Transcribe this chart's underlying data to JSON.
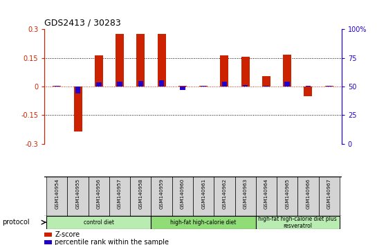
{
  "title": "GDS2413 / 30283",
  "samples": [
    "GSM140954",
    "GSM140955",
    "GSM140956",
    "GSM140957",
    "GSM140958",
    "GSM140959",
    "GSM140960",
    "GSM140961",
    "GSM140962",
    "GSM140963",
    "GSM140964",
    "GSM140965",
    "GSM140966",
    "GSM140967"
  ],
  "zscore": [
    0.003,
    -0.235,
    0.162,
    0.278,
    0.278,
    0.278,
    0.003,
    0.003,
    0.162,
    0.155,
    0.055,
    0.168,
    -0.05,
    0.003
  ],
  "pct_rank": [
    50.5,
    44.0,
    53.5,
    54.0,
    55.0,
    55.5,
    47.0,
    50.5,
    54.0,
    51.5,
    50.5,
    54.0,
    50.5,
    50.5
  ],
  "groups": [
    {
      "label": "control diet",
      "start": 0,
      "end": 4,
      "color": "#b8ecb0"
    },
    {
      "label": "high-fat high-calorie diet",
      "start": 5,
      "end": 9,
      "color": "#90dd78"
    },
    {
      "label": "high-fat high-calorie diet plus\nresveratrol",
      "start": 10,
      "end": 13,
      "color": "#b8ecb0"
    }
  ],
  "ylim_left": [
    -0.3,
    0.3
  ],
  "ylim_right": [
    0,
    100
  ],
  "yticks_left": [
    -0.3,
    -0.15,
    0.0,
    0.15,
    0.3
  ],
  "ytick_labels_left": [
    "-0.3",
    "-0.15",
    "0",
    "0.15",
    "0.3"
  ],
  "yticks_right": [
    0,
    25,
    50,
    75,
    100
  ],
  "ytick_labels_right": [
    "0",
    "25",
    "50",
    "75",
    "100%"
  ],
  "zscore_color": "#cc2200",
  "pct_color": "#2200cc",
  "dotted_color": "#888888",
  "bar_width": 0.4,
  "pct_bar_width": 0.25,
  "label_zscore": "Z-score",
  "label_pct": "percentile rank within the sample",
  "sample_bg_color": "#d4d4d4",
  "protocol_label": "protocol"
}
